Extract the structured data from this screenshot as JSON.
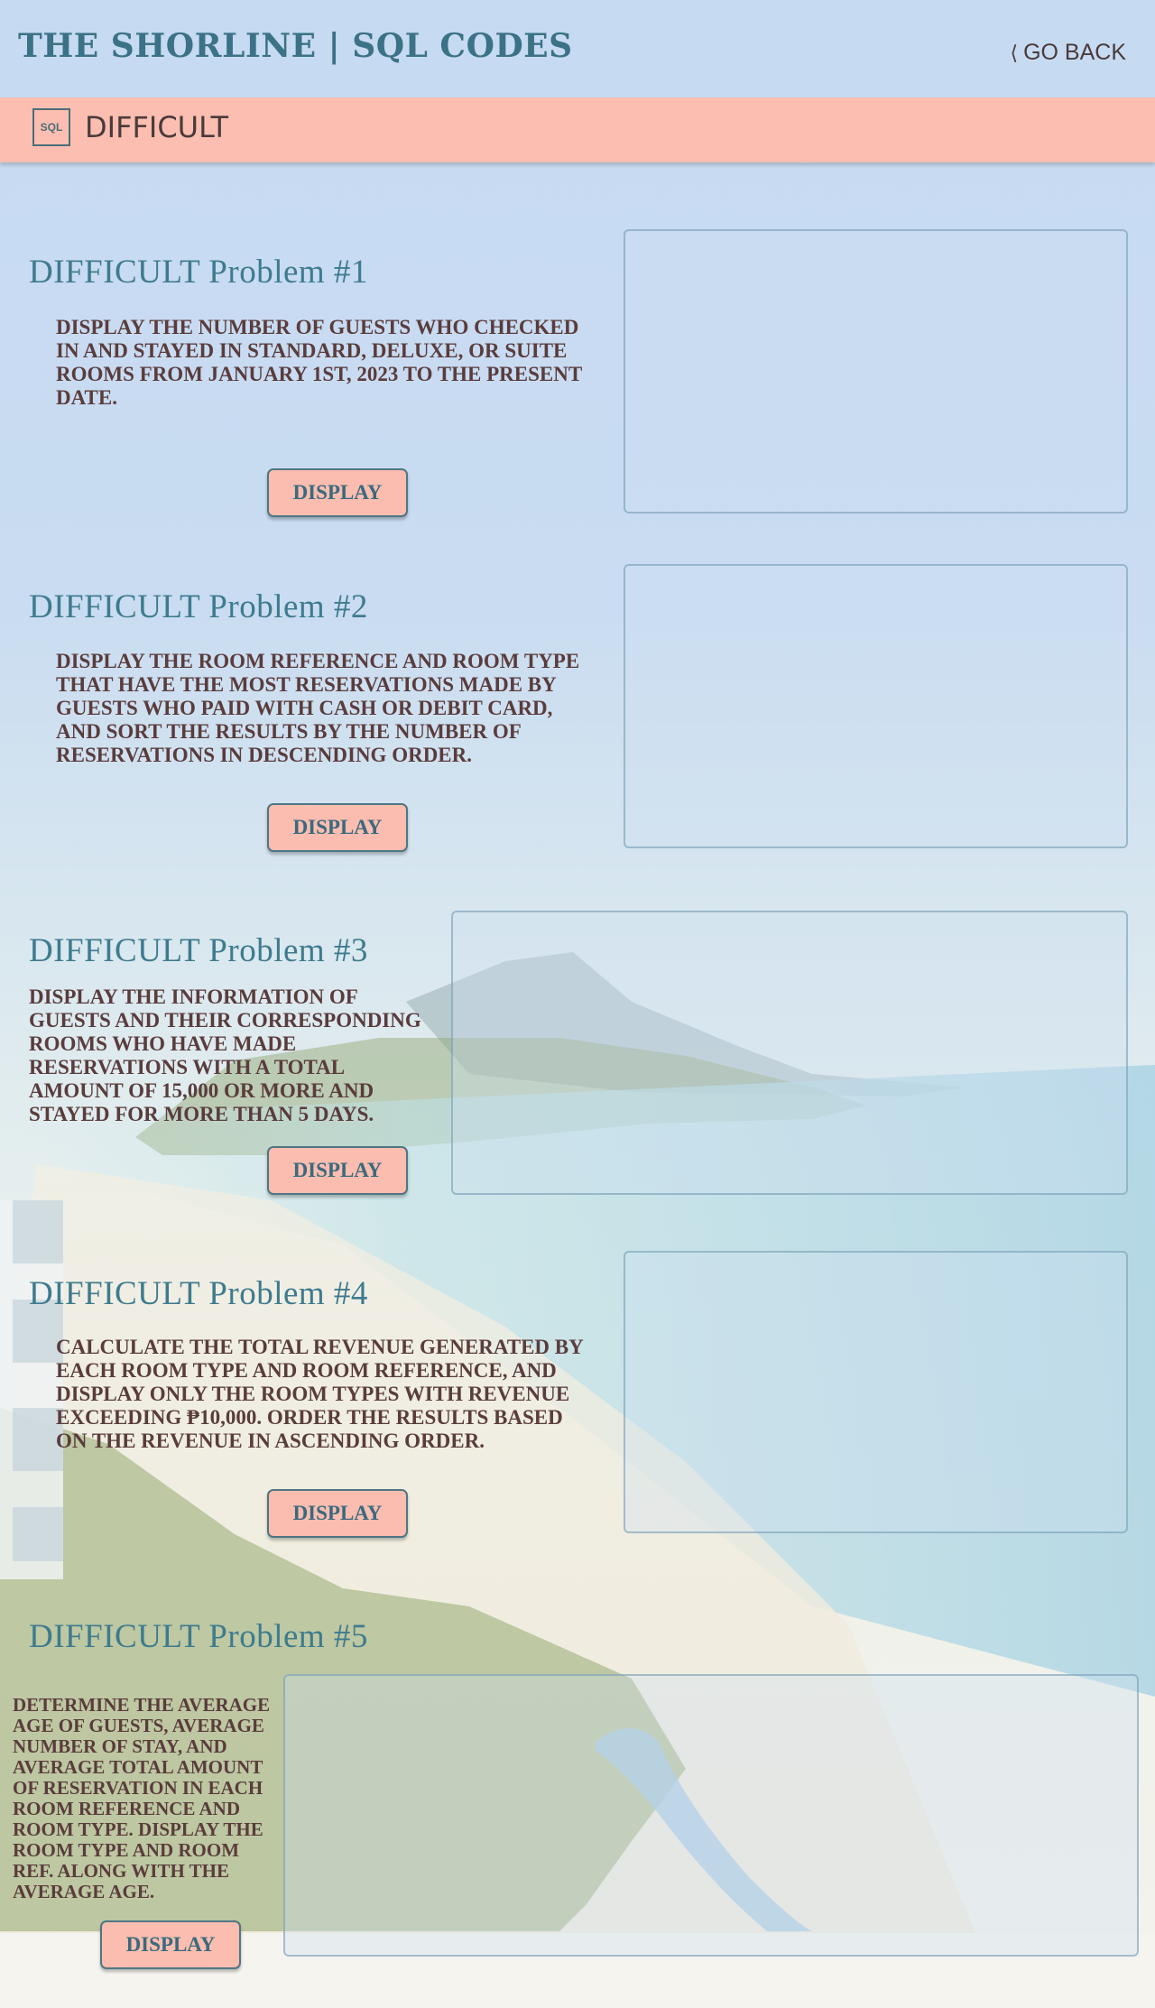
{
  "header": {
    "site_title": "THE SHORLINE | SQL CODES",
    "go_back_label": "GO BACK"
  },
  "section": {
    "badge": "SQL",
    "title": "DIFFICULT"
  },
  "problems": [
    {
      "title": "DIFFICULT Problem #1",
      "description": "Display the number of guests who checked in and stayed in standard, deluxe, or suite rooms from January 1st, 2023 to the present date.",
      "button": "DISPLAY"
    },
    {
      "title": "DIFFICULT Problem #2",
      "description": "Display the room reference and room type that have the most reservations made by guests who paid with cash or debit card, and sort the results by the number of reservations in descending order.",
      "button": "DISPLAY"
    },
    {
      "title": "DIFFICULT Problem #3",
      "description": "Display the information of guests and their corresponding rooms who have made reservations with a total amount of 15,000 or more and stayed for more than 5 days.",
      "button": "DISPLAY"
    },
    {
      "title": "DIFFICULT Problem #4",
      "description": "Calculate the total revenue generated by each room type and room reference, and display only the room types with revenue exceeding ₱10,000. Order the results based on the revenue in ascending order.",
      "button": "DISPLAY"
    },
    {
      "title": "DIFFICULT Problem #5",
      "description": "Determine the average age of guests, average number of stay, and average total amount of reservation in each room reference and room type. Display the room type and room ref. along with the average age.",
      "button": "DISPLAY"
    }
  ],
  "colors": {
    "accent": "#3e7b8e",
    "band": "#fbbeb0",
    "text": "#5a3c3c"
  }
}
